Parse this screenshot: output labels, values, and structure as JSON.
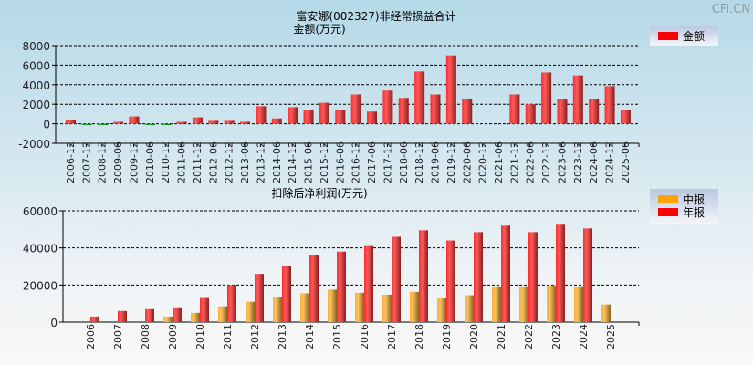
{
  "watermark": "CFi.CN",
  "chart_data": [
    {
      "type": "bar",
      "title": "富安娜(002327)非经常损益合计",
      "ylabel": "金额(万元)",
      "ylim": [
        -2000,
        8000
      ],
      "yticks": [
        -2000,
        0,
        2000,
        4000,
        6000,
        8000
      ],
      "grid": true,
      "legend": {
        "position": "top-right",
        "entries": [
          {
            "label": "金额",
            "color": "#ff0000"
          }
        ]
      },
      "categories": [
        "2006-12",
        "2007-12",
        "2008-12",
        "2009-06",
        "2009-12",
        "2010-06",
        "2010-12",
        "2011-06",
        "2011-12",
        "2012-06",
        "2012-12",
        "2013-06",
        "2013-12",
        "2014-06",
        "2014-12",
        "2015-06",
        "2015-12",
        "2016-06",
        "2016-12",
        "2017-06",
        "2017-12",
        "2018-06",
        "2018-12",
        "2019-06",
        "2019-12",
        "2020-06",
        "2020-12",
        "2021-06",
        "2021-12",
        "2022-06",
        "2022-12",
        "2023-06",
        "2023-12",
        "2024-06",
        "2024-12",
        "2025-06"
      ],
      "series": [
        {
          "name": "金额",
          "color": "#ff0000",
          "negative_color": "#22aa22",
          "values": [
            350,
            -80,
            -80,
            200,
            750,
            -80,
            -80,
            200,
            650,
            300,
            300,
            200,
            1800,
            550,
            1700,
            1400,
            2150,
            1450,
            3000,
            1250,
            3400,
            2650,
            5350,
            3000,
            7000,
            2550,
            0,
            0,
            3000,
            2000,
            5250,
            2550,
            4950,
            2550,
            3850,
            1450
          ]
        }
      ]
    },
    {
      "type": "bar",
      "title": "扣除后净利润(万元)",
      "ylim": [
        0,
        60000
      ],
      "yticks": [
        0,
        20000,
        40000,
        60000
      ],
      "grid": true,
      "legend": {
        "position": "top-right",
        "entries": [
          {
            "label": "中报",
            "color": "#ffa500"
          },
          {
            "label": "年报",
            "color": "#ff0000"
          }
        ]
      },
      "categories": [
        "2006",
        "2007",
        "2008",
        "2009",
        "2010",
        "2011",
        "2012",
        "2013",
        "2014",
        "2015",
        "2016",
        "2017",
        "2018",
        "2019",
        "2020",
        "2021",
        "2022",
        "2023",
        "2024",
        "2025"
      ],
      "series": [
        {
          "name": "中报",
          "color": "#ffa500",
          "values": [
            null,
            null,
            null,
            3000,
            5000,
            8500,
            11000,
            13500,
            15500,
            17500,
            15800,
            14800,
            16300,
            12800,
            14500,
            19300,
            19300,
            19800,
            19300,
            9500
          ]
        },
        {
          "name": "年报",
          "color": "#ff0000",
          "values": [
            3000,
            6000,
            7000,
            8000,
            13000,
            20000,
            26000,
            30000,
            36000,
            38000,
            41000,
            46000,
            49500,
            44000,
            48500,
            52000,
            48500,
            52500,
            50500,
            null
          ]
        }
      ]
    }
  ]
}
